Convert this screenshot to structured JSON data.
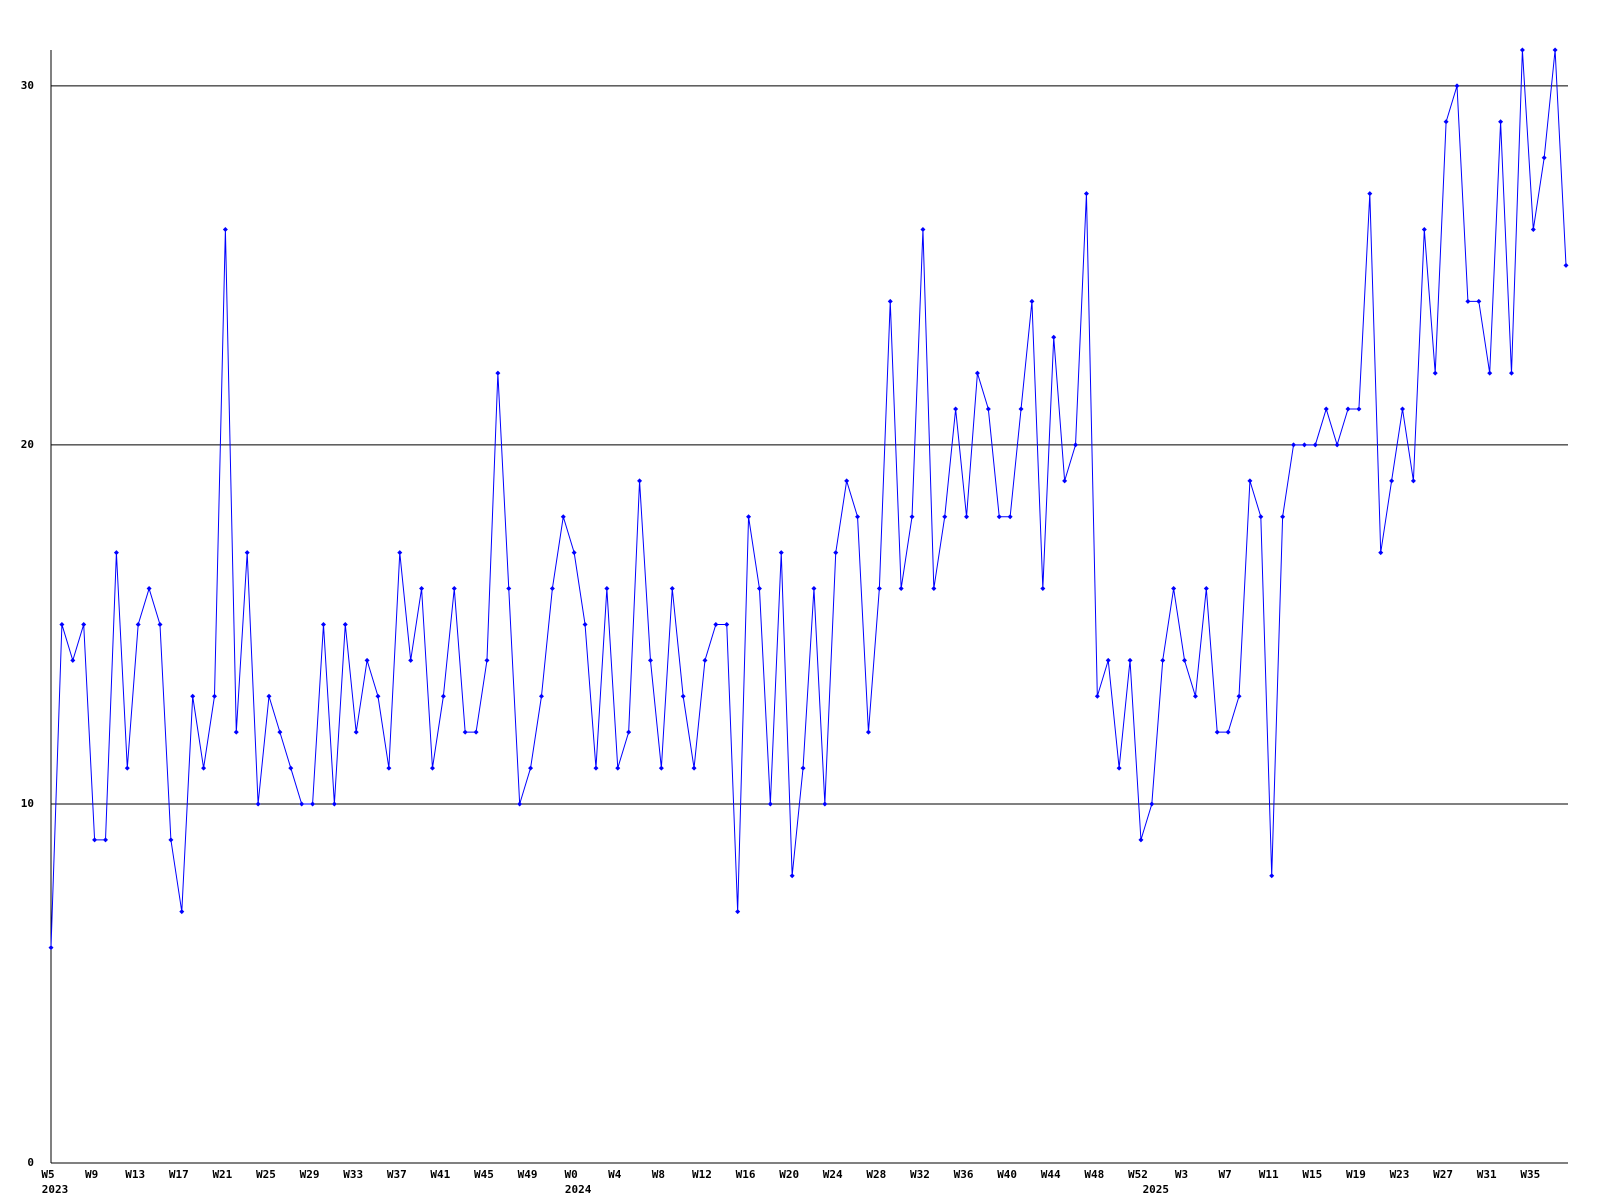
{
  "chart_data": {
    "type": "line",
    "categories": [
      "W5",
      null,
      null,
      null,
      "W9",
      null,
      null,
      null,
      "W13",
      null,
      null,
      null,
      "W17",
      null,
      null,
      null,
      "W21",
      null,
      null,
      null,
      "W25",
      null,
      null,
      null,
      "W29",
      null,
      null,
      null,
      "W33",
      null,
      null,
      null,
      "W37",
      null,
      null,
      null,
      "W41",
      null,
      null,
      null,
      "W45",
      null,
      null,
      null,
      "W49",
      null,
      null,
      null,
      "W0",
      null,
      null,
      null,
      "W4",
      null,
      null,
      null,
      "W8",
      null,
      null,
      null,
      "W12",
      null,
      null,
      null,
      "W16",
      null,
      null,
      null,
      "W20",
      null,
      null,
      null,
      "W24",
      null,
      null,
      null,
      "W28",
      null,
      null,
      null,
      "W32",
      null,
      null,
      null,
      "W36",
      null,
      null,
      null,
      "W40",
      null,
      null,
      null,
      "W44",
      null,
      null,
      null,
      "W48",
      null,
      null,
      null,
      "W52",
      null,
      null,
      null,
      "W3",
      null,
      null,
      null,
      "W7",
      null,
      null,
      null,
      "W11",
      null,
      null,
      null,
      "W15",
      null,
      null,
      null,
      "W19",
      null,
      null,
      null,
      "W23",
      null,
      null,
      null,
      "W27",
      null,
      null,
      null,
      "W31",
      null,
      null,
      null,
      "W35",
      null,
      null,
      null
    ],
    "years": [
      "2023",
      null,
      null,
      null,
      null,
      null,
      null,
      null,
      null,
      null,
      null,
      null,
      null,
      null,
      null,
      null,
      null,
      null,
      null,
      null,
      null,
      null,
      null,
      null,
      null,
      null,
      null,
      null,
      null,
      null,
      null,
      null,
      null,
      null,
      null,
      null,
      null,
      null,
      null,
      null,
      null,
      null,
      null,
      null,
      null,
      null,
      null,
      null,
      "2024",
      null,
      null,
      null,
      null,
      null,
      null,
      null,
      null,
      null,
      null,
      null,
      null,
      null,
      null,
      null,
      null,
      null,
      null,
      null,
      null,
      null,
      null,
      null,
      null,
      null,
      null,
      null,
      null,
      null,
      null,
      null,
      null,
      null,
      null,
      null,
      null,
      null,
      null,
      null,
      null,
      null,
      null,
      null,
      null,
      null,
      null,
      null,
      null,
      null,
      null,
      null,
      null,
      "2025",
      null,
      null,
      null,
      null,
      null,
      null,
      null,
      null,
      null,
      null,
      null,
      null,
      null,
      null,
      null,
      null,
      null,
      null,
      null,
      null,
      null,
      null,
      null,
      null,
      null,
      null,
      null,
      null,
      null,
      null,
      null,
      null,
      null,
      null,
      null,
      null,
      null,
      null
    ],
    "values": [
      6,
      15,
      14,
      15,
      9,
      9,
      17,
      11,
      15,
      16,
      15,
      9,
      7,
      13,
      11,
      13,
      26,
      12,
      17,
      10,
      13,
      12,
      11,
      10,
      10,
      15,
      10,
      15,
      12,
      14,
      13,
      11,
      17,
      14,
      16,
      11,
      13,
      16,
      12,
      12,
      14,
      22,
      16,
      10,
      11,
      13,
      16,
      18,
      17,
      15,
      11,
      16,
      11,
      12,
      19,
      14,
      11,
      16,
      13,
      11,
      14,
      15,
      15,
      7,
      18,
      16,
      10,
      17,
      8,
      11,
      16,
      10,
      17,
      19,
      18,
      12,
      16,
      24,
      16,
      18,
      26,
      16,
      18,
      21,
      18,
      22,
      21,
      18,
      18,
      21,
      24,
      16,
      23,
      19,
      20,
      27,
      13,
      14,
      11,
      14,
      9,
      10,
      14,
      16,
      14,
      13,
      16,
      12,
      12,
      13,
      19,
      18,
      8,
      18,
      20,
      20,
      20,
      21,
      20,
      21,
      21,
      27,
      17,
      19,
      21,
      19,
      26,
      22,
      29,
      30,
      24,
      24,
      22,
      29,
      22,
      31,
      26,
      28,
      31,
      25
    ],
    "color": "#0000ff",
    "ylim": [
      0,
      31
    ],
    "yticks": [
      0,
      10,
      20,
      30
    ],
    "grid": true
  }
}
